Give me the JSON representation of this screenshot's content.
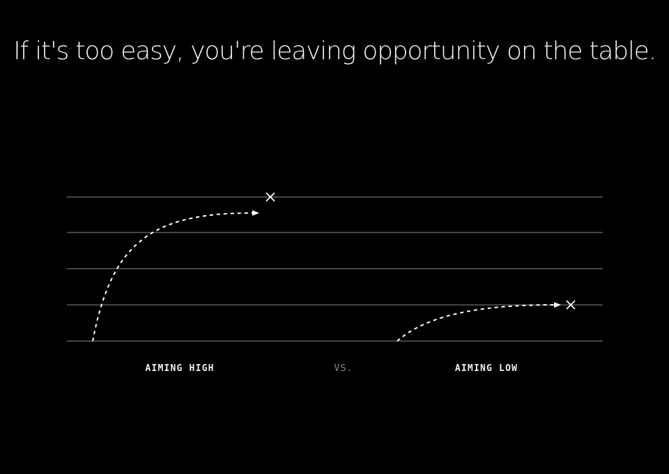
{
  "headline": "If it's too easy, you're leaving opportunity on the table.",
  "diagram": {
    "labels": {
      "left": "AIMING HIGH",
      "middle": "VS.",
      "right": "AIMING LOW"
    },
    "levels": 5,
    "colors": {
      "background": "#000000",
      "text": "#f2f2f2",
      "gridline": "#5a5a5a",
      "path": "#ffffff",
      "muted_label": "#8a8a8a"
    },
    "icons": {
      "target": "x-mark-icon",
      "arrow": "arrowhead-icon"
    }
  }
}
